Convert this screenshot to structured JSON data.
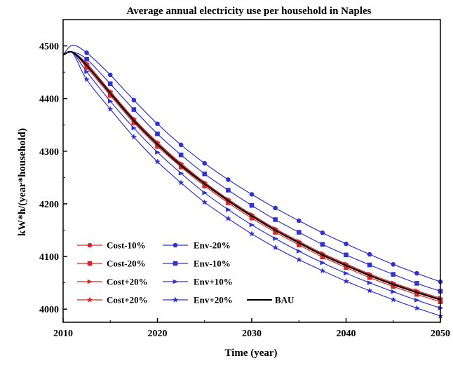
{
  "chart_data": {
    "type": "line",
    "title": "Average annual electricity use per household  in Naples",
    "xlabel": "Time (year)",
    "ylabel": "kW*h/(year*household)",
    "xlim": [
      2010,
      2050
    ],
    "ylim": [
      3975,
      4550
    ],
    "xticks": [
      2010,
      2020,
      2030,
      2040,
      2050
    ],
    "yticks": [
      4000,
      4100,
      4200,
      4300,
      4400,
      4500
    ],
    "grid": false,
    "legend_position": "bottom-left",
    "x": [
      2010,
      2012.5,
      2015,
      2017.5,
      2020,
      2022.5,
      2025,
      2027.5,
      2030,
      2032.5,
      2035,
      2037.5,
      2040,
      2042.5,
      2045,
      2047.5,
      2050
    ],
    "series": [
      {
        "name": "Cost-10%",
        "color": "#d62728",
        "marker": "circle",
        "values": [
          4483,
          4463,
          4410,
          4358,
          4313,
          4273,
          4237,
          4205,
          4176,
          4149,
          4125,
          4102,
          4082,
          4063,
          4046,
          4031,
          4017
        ]
      },
      {
        "name": "Cost-20%",
        "color": "#d62728",
        "marker": "square",
        "values": [
          4483,
          4459,
          4406,
          4354,
          4309,
          4270,
          4234,
          4202,
          4173,
          4146,
          4122,
          4099,
          4079,
          4060,
          4043,
          4028,
          4014
        ]
      },
      {
        "name": "Cost+20%",
        "color": "#d62728",
        "marker": "triangle-right",
        "values": [
          4483,
          4467,
          4414,
          4362,
          4317,
          4277,
          4241,
          4209,
          4180,
          4153,
          4129,
          4106,
          4086,
          4067,
          4050,
          4035,
          4021
        ]
      },
      {
        "name": "Cost+20%",
        "color": "#d62728",
        "marker": "star",
        "values": [
          4483,
          4464,
          4412,
          4360,
          4315,
          4275,
          4239,
          4207,
          4178,
          4151,
          4127,
          4104,
          4084,
          4065,
          4048,
          4033,
          4019
        ]
      },
      {
        "name": "Env-20%",
        "color": "#3333cc",
        "marker": "circle",
        "values": [
          4483,
          4487,
          4445,
          4397,
          4352,
          4312,
          4277,
          4246,
          4218,
          4192,
          4168,
          4145,
          4124,
          4104,
          4085,
          4068,
          4052
        ]
      },
      {
        "name": "Env-10%",
        "color": "#3333cc",
        "marker": "square",
        "values": [
          4483,
          4475,
          4428,
          4379,
          4333,
          4293,
          4257,
          4226,
          4197,
          4170,
          4146,
          4123,
          4103,
          4084,
          4066,
          4049,
          4034
        ]
      },
      {
        "name": "Env+10%",
        "color": "#3333cc",
        "marker": "triangle-right",
        "values": [
          4483,
          4451,
          4395,
          4344,
          4298,
          4258,
          4221,
          4189,
          4160,
          4134,
          4110,
          4088,
          4068,
          4050,
          4033,
          4017,
          4002
        ]
      },
      {
        "name": "Env+20%",
        "color": "#3333cc",
        "marker": "star",
        "values": [
          4483,
          4436,
          4380,
          4327,
          4280,
          4240,
          4203,
          4172,
          4143,
          4117,
          4094,
          4073,
          4053,
          4035,
          4018,
          4002,
          3987
        ]
      },
      {
        "name": "BAU",
        "color": "#000000",
        "marker": "none",
        "values": [
          4483,
          4463,
          4410,
          4358,
          4313,
          4273,
          4238,
          4206,
          4177,
          4150,
          4126,
          4103,
          4083,
          4064,
          4047,
          4032,
          4018
        ]
      }
    ],
    "legend_columns": [
      [
        "Cost-10%",
        "Cost-20%",
        "Cost+20%",
        "Cost+20%"
      ],
      [
        "Env-20%",
        "Env-10%",
        "Env+10%",
        "Env+20%",
        "BAU"
      ]
    ]
  }
}
